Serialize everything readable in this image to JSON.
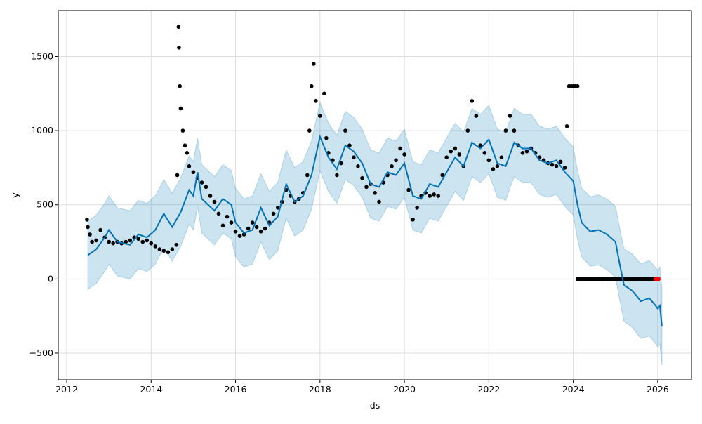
{
  "chart_data": {
    "type": "line",
    "title": "",
    "xlabel": "ds",
    "ylabel": "y",
    "xlim": [
      2011.8,
      2026.8
    ],
    "ylim": [
      -680,
      1810
    ],
    "grid": true,
    "x_ticks": [
      2012,
      2014,
      2016,
      2018,
      2020,
      2022,
      2024,
      2026
    ],
    "x_tick_labels": [
      "2012",
      "2014",
      "2016",
      "2018",
      "2020",
      "2022",
      "2024",
      "2026"
    ],
    "y_ticks": [
      -500,
      0,
      500,
      1000,
      1500
    ],
    "y_tick_labels": [
      "−500",
      "0",
      "500",
      "1000",
      "1500"
    ],
    "colors": {
      "forecast": "#0072B2",
      "band": "#0072B2",
      "actual": "#000000",
      "highlight": "#ff0000"
    },
    "forecast": {
      "name": "yhat",
      "points": [
        [
          2012.5,
          160
        ],
        [
          2012.7,
          200
        ],
        [
          2012.9,
          280
        ],
        [
          2013.0,
          330
        ],
        [
          2013.2,
          250
        ],
        [
          2013.5,
          230
        ],
        [
          2013.7,
          300
        ],
        [
          2013.9,
          280
        ],
        [
          2014.1,
          330
        ],
        [
          2014.3,
          440
        ],
        [
          2014.5,
          350
        ],
        [
          2014.7,
          450
        ],
        [
          2014.9,
          600
        ],
        [
          2015.0,
          560
        ],
        [
          2015.1,
          720
        ],
        [
          2015.2,
          540
        ],
        [
          2015.5,
          460
        ],
        [
          2015.7,
          540
        ],
        [
          2015.9,
          500
        ],
        [
          2016.0,
          380
        ],
        [
          2016.2,
          310
        ],
        [
          2016.4,
          330
        ],
        [
          2016.6,
          480
        ],
        [
          2016.8,
          360
        ],
        [
          2017.0,
          420
        ],
        [
          2017.2,
          640
        ],
        [
          2017.4,
          520
        ],
        [
          2017.6,
          560
        ],
        [
          2017.8,
          700
        ],
        [
          2018.0,
          960
        ],
        [
          2018.2,
          820
        ],
        [
          2018.4,
          740
        ],
        [
          2018.6,
          900
        ],
        [
          2018.8,
          860
        ],
        [
          2019.0,
          780
        ],
        [
          2019.2,
          640
        ],
        [
          2019.4,
          620
        ],
        [
          2019.6,
          720
        ],
        [
          2019.8,
          700
        ],
        [
          2020.0,
          780
        ],
        [
          2020.2,
          560
        ],
        [
          2020.4,
          540
        ],
        [
          2020.6,
          640
        ],
        [
          2020.8,
          620
        ],
        [
          2021.0,
          720
        ],
        [
          2021.2,
          820
        ],
        [
          2021.4,
          760
        ],
        [
          2021.6,
          920
        ],
        [
          2021.8,
          880
        ],
        [
          2022.0,
          940
        ],
        [
          2022.2,
          780
        ],
        [
          2022.4,
          760
        ],
        [
          2022.6,
          920
        ],
        [
          2022.8,
          880
        ],
        [
          2023.0,
          880
        ],
        [
          2023.2,
          800
        ],
        [
          2023.4,
          780
        ],
        [
          2023.6,
          800
        ],
        [
          2023.8,
          720
        ],
        [
          2024.0,
          660
        ],
        [
          2024.1,
          500
        ],
        [
          2024.2,
          380
        ],
        [
          2024.4,
          320
        ],
        [
          2024.6,
          330
        ],
        [
          2024.8,
          300
        ],
        [
          2025.0,
          250
        ],
        [
          2025.1,
          100
        ],
        [
          2025.2,
          -40
        ],
        [
          2025.4,
          -80
        ],
        [
          2025.6,
          -150
        ],
        [
          2025.8,
          -130
        ],
        [
          2025.95,
          -180
        ],
        [
          2026.0,
          -200
        ],
        [
          2026.05,
          -180
        ],
        [
          2026.1,
          -320
        ]
      ]
    },
    "band_halfwidth": [
      [
        2012.5,
        230
      ],
      [
        2024.0,
        230
      ],
      [
        2025.0,
        240
      ],
      [
        2026.1,
        260
      ]
    ],
    "actual": [
      [
        2012.48,
        400
      ],
      [
        2012.5,
        350
      ],
      [
        2012.55,
        300
      ],
      [
        2012.6,
        250
      ],
      [
        2012.7,
        260
      ],
      [
        2012.8,
        330
      ],
      [
        2012.9,
        280
      ],
      [
        2013.0,
        250
      ],
      [
        2013.1,
        240
      ],
      [
        2013.2,
        250
      ],
      [
        2013.3,
        240
      ],
      [
        2013.4,
        250
      ],
      [
        2013.5,
        260
      ],
      [
        2013.6,
        280
      ],
      [
        2013.7,
        270
      ],
      [
        2013.8,
        250
      ],
      [
        2013.9,
        260
      ],
      [
        2014.0,
        240
      ],
      [
        2014.1,
        220
      ],
      [
        2014.2,
        200
      ],
      [
        2014.3,
        190
      ],
      [
        2014.4,
        180
      ],
      [
        2014.5,
        200
      ],
      [
        2014.6,
        230
      ],
      [
        2014.62,
        700
      ],
      [
        2014.65,
        1700
      ],
      [
        2014.66,
        1560
      ],
      [
        2014.68,
        1300
      ],
      [
        2014.7,
        1150
      ],
      [
        2014.75,
        1000
      ],
      [
        2014.8,
        900
      ],
      [
        2014.85,
        850
      ],
      [
        2014.9,
        760
      ],
      [
        2015.0,
        720
      ],
      [
        2015.1,
        680
      ],
      [
        2015.2,
        650
      ],
      [
        2015.3,
        620
      ],
      [
        2015.4,
        560
      ],
      [
        2015.5,
        520
      ],
      [
        2015.6,
        440
      ],
      [
        2015.7,
        360
      ],
      [
        2015.8,
        420
      ],
      [
        2015.9,
        380
      ],
      [
        2016.0,
        320
      ],
      [
        2016.1,
        290
      ],
      [
        2016.2,
        300
      ],
      [
        2016.3,
        340
      ],
      [
        2016.4,
        380
      ],
      [
        2016.5,
        350
      ],
      [
        2016.6,
        320
      ],
      [
        2016.7,
        340
      ],
      [
        2016.8,
        380
      ],
      [
        2016.9,
        440
      ],
      [
        2017.0,
        480
      ],
      [
        2017.1,
        520
      ],
      [
        2017.2,
        600
      ],
      [
        2017.3,
        560
      ],
      [
        2017.4,
        520
      ],
      [
        2017.5,
        540
      ],
      [
        2017.6,
        580
      ],
      [
        2017.7,
        700
      ],
      [
        2017.75,
        1000
      ],
      [
        2017.8,
        1300
      ],
      [
        2017.85,
        1450
      ],
      [
        2017.9,
        1200
      ],
      [
        2018.0,
        1100
      ],
      [
        2018.1,
        1250
      ],
      [
        2018.15,
        950
      ],
      [
        2018.2,
        850
      ],
      [
        2018.3,
        800
      ],
      [
        2018.4,
        700
      ],
      [
        2018.5,
        780
      ],
      [
        2018.6,
        1000
      ],
      [
        2018.7,
        900
      ],
      [
        2018.8,
        820
      ],
      [
        2018.9,
        760
      ],
      [
        2019.0,
        680
      ],
      [
        2019.1,
        620
      ],
      [
        2019.2,
        640
      ],
      [
        2019.3,
        580
      ],
      [
        2019.4,
        520
      ],
      [
        2019.5,
        650
      ],
      [
        2019.6,
        700
      ],
      [
        2019.7,
        760
      ],
      [
        2019.8,
        800
      ],
      [
        2019.9,
        880
      ],
      [
        2020.0,
        840
      ],
      [
        2020.1,
        600
      ],
      [
        2020.2,
        400
      ],
      [
        2020.3,
        480
      ],
      [
        2020.4,
        560
      ],
      [
        2020.5,
        580
      ],
      [
        2020.6,
        560
      ],
      [
        2020.7,
        570
      ],
      [
        2020.8,
        560
      ],
      [
        2020.9,
        700
      ],
      [
        2021.0,
        820
      ],
      [
        2021.1,
        860
      ],
      [
        2021.2,
        880
      ],
      [
        2021.3,
        840
      ],
      [
        2021.4,
        760
      ],
      [
        2021.5,
        1000
      ],
      [
        2021.6,
        1200
      ],
      [
        2021.7,
        1100
      ],
      [
        2021.8,
        900
      ],
      [
        2021.9,
        850
      ],
      [
        2022.0,
        800
      ],
      [
        2022.1,
        740
      ],
      [
        2022.2,
        760
      ],
      [
        2022.3,
        820
      ],
      [
        2022.4,
        1000
      ],
      [
        2022.5,
        1100
      ],
      [
        2022.6,
        1000
      ],
      [
        2022.7,
        900
      ],
      [
        2022.8,
        850
      ],
      [
        2022.9,
        860
      ],
      [
        2023.0,
        880
      ],
      [
        2023.1,
        850
      ],
      [
        2023.2,
        820
      ],
      [
        2023.3,
        800
      ],
      [
        2023.4,
        780
      ],
      [
        2023.5,
        770
      ],
      [
        2023.6,
        760
      ],
      [
        2023.7,
        790
      ],
      [
        2023.8,
        750
      ],
      [
        2023.85,
        1030
      ],
      [
        2023.9,
        1300
      ],
      [
        2023.95,
        1300
      ],
      [
        2024.0,
        1300
      ],
      [
        2024.05,
        1300
      ],
      [
        2024.1,
        1300
      ],
      [
        2024.1,
        0
      ],
      [
        2024.2,
        0
      ],
      [
        2024.3,
        0
      ],
      [
        2024.4,
        0
      ],
      [
        2024.5,
        0
      ],
      [
        2024.6,
        0
      ],
      [
        2024.7,
        0
      ],
      [
        2024.8,
        0
      ],
      [
        2024.9,
        0
      ],
      [
        2025.0,
        0
      ],
      [
        2025.1,
        0
      ],
      [
        2025.2,
        0
      ],
      [
        2025.3,
        0
      ],
      [
        2025.4,
        0
      ],
      [
        2025.5,
        0
      ],
      [
        2025.6,
        0
      ],
      [
        2025.7,
        0
      ],
      [
        2025.8,
        0
      ],
      [
        2025.9,
        0
      ]
    ],
    "highlighted": [
      [
        2025.95,
        0
      ],
      [
        2025.98,
        0
      ],
      [
        2026.0,
        0
      ],
      [
        2026.02,
        0
      ]
    ]
  }
}
